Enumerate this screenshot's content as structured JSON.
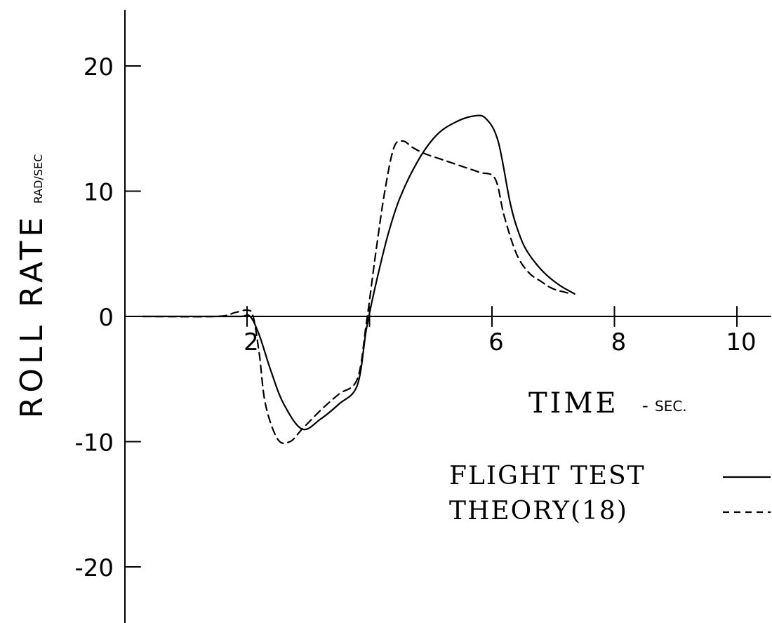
{
  "chart_data": {
    "type": "line",
    "title": "",
    "xlabel": "TIME",
    "xlabel_unit": "SEC.",
    "ylabel": "ROLL RATE",
    "ylabel_unit": "RAD/SEC",
    "xlim": [
      0,
      10.3
    ],
    "ylim": [
      -25,
      25
    ],
    "x_ticks": [
      2,
      4,
      6,
      8,
      10
    ],
    "x_tick_labels": [
      "2",
      "",
      "6",
      "8",
      "10"
    ],
    "y_ticks": [
      -20,
      -10,
      0,
      10,
      20
    ],
    "y_tick_labels": [
      "-20",
      "-10",
      "0",
      "10",
      "20"
    ],
    "grid": false,
    "legend": "right",
    "series": [
      {
        "name": "FLIGHT TEST",
        "style": "solid",
        "legend_sample": "—",
        "x": [
          0.3,
          1.5,
          1.9,
          2.05,
          2.2,
          2.4,
          2.6,
          2.9,
          3.2,
          3.5,
          3.8,
          3.95,
          4.1,
          4.3,
          4.5,
          4.8,
          5.1,
          5.4,
          5.7,
          5.9,
          6.1,
          6.3,
          6.45,
          6.6,
          6.85,
          7.1,
          7.35
        ],
        "y": [
          0,
          0,
          0,
          0,
          -1.5,
          -4.5,
          -7,
          -9,
          -8.2,
          -7,
          -5.5,
          -1,
          2.5,
          6.5,
          9.5,
          12.5,
          14.5,
          15.5,
          16,
          15.8,
          14,
          9,
          6.5,
          5,
          3.5,
          2.5,
          1.8
        ]
      },
      {
        "name": "THEORY(18)",
        "style": "dashed",
        "legend_sample": "----",
        "x": [
          0.3,
          1.5,
          1.8,
          2.0,
          2.1,
          2.2,
          2.3,
          2.5,
          2.7,
          2.9,
          3.2,
          3.5,
          3.8,
          3.95,
          4.1,
          4.25,
          4.4,
          4.55,
          4.7,
          4.9,
          5.2,
          5.5,
          5.8,
          6.05,
          6.2,
          6.4,
          6.6,
          6.8,
          7.0,
          7.3
        ],
        "y": [
          0,
          0,
          0.3,
          0.5,
          0,
          -3,
          -7,
          -9.8,
          -10,
          -9,
          -7.5,
          -6.2,
          -5,
          -0.5,
          5,
          10,
          13.5,
          14,
          13.5,
          13,
          12.5,
          12,
          11.5,
          11,
          8,
          5,
          3.5,
          2.8,
          2.2,
          1.8
        ]
      }
    ]
  }
}
